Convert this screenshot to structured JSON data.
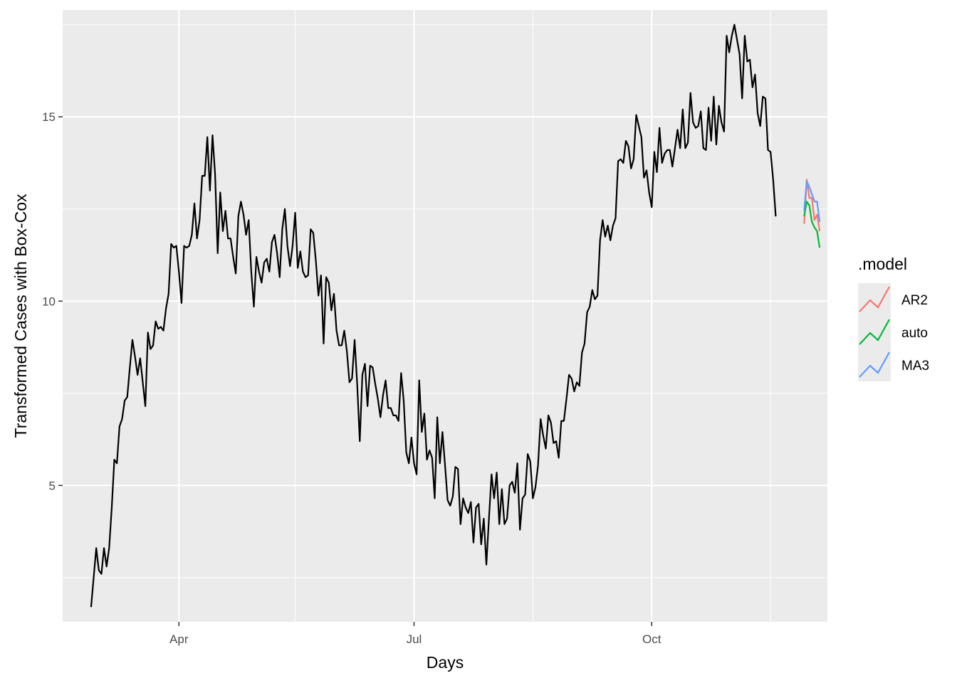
{
  "chart_data": {
    "type": "line",
    "title": "",
    "xlabel": "Days",
    "ylabel": "Transformed Cases with Box-Cox",
    "x_ticks": [
      {
        "label": "Apr",
        "date": "2020-04-01"
      },
      {
        "label": "Jul",
        "date": "2020-07-01"
      },
      {
        "label": "Oct",
        "date": "2020-10-01"
      }
    ],
    "x_minor_dates": [
      "2020-05-16",
      "2020-08-16",
      "2020-11-16"
    ],
    "xlim": [
      "2020-02-16",
      "2020-12-08"
    ],
    "y_ticks": [
      5,
      10,
      15
    ],
    "ylim": [
      1.3,
      17.9
    ],
    "grid": true,
    "legend_title": ".model",
    "legend_position": "right",
    "history": {
      "start_date": "2020-02-27",
      "values": [
        1.7,
        2.5,
        3.3,
        2.7,
        2.6,
        3.3,
        2.8,
        3.3,
        4.4,
        5.7,
        5.6,
        6.6,
        6.8,
        7.3,
        7.4,
        8.2,
        8.95,
        8.5,
        8.0,
        8.45,
        7.8,
        7.15,
        9.15,
        8.7,
        8.8,
        9.45,
        9.25,
        9.3,
        9.2,
        9.8,
        10.2,
        11.55,
        11.45,
        11.5,
        10.8,
        9.95,
        11.5,
        11.45,
        11.5,
        11.8,
        12.65,
        11.7,
        12.2,
        13.4,
        13.4,
        14.45,
        13.0,
        14.5,
        13.45,
        11.3,
        12.95,
        11.9,
        12.45,
        11.7,
        11.7,
        11.2,
        10.75,
        12.3,
        12.7,
        12.35,
        11.8,
        12.2,
        10.8,
        9.85,
        11.2,
        10.8,
        10.5,
        11.05,
        11.15,
        10.8,
        11.6,
        11.8,
        11.3,
        10.65,
        11.95,
        12.5,
        11.5,
        10.95,
        11.5,
        12.4,
        10.9,
        11.35,
        10.8,
        10.65,
        10.7,
        11.95,
        11.85,
        11.1,
        10.15,
        10.7,
        8.85,
        10.65,
        10.5,
        9.75,
        10.2,
        9.2,
        8.8,
        8.8,
        9.2,
        8.65,
        7.8,
        7.9,
        8.95,
        7.75,
        6.2,
        8.0,
        8.3,
        7.15,
        8.25,
        8.2,
        7.75,
        7.35,
        6.85,
        7.45,
        7.85,
        7.1,
        7.1,
        6.9,
        6.9,
        6.75,
        8.05,
        7.3,
        5.9,
        5.6,
        6.3,
        5.6,
        5.3,
        7.85,
        6.45,
        6.95,
        5.7,
        5.95,
        5.75,
        4.65,
        6.85,
        5.6,
        6.45,
        5.55,
        4.6,
        4.45,
        4.7,
        5.5,
        5.45,
        3.95,
        4.65,
        4.4,
        4.25,
        4.55,
        3.45,
        4.4,
        4.5,
        3.4,
        4.1,
        2.85,
        4.1,
        5.3,
        4.65,
        5.35,
        3.95,
        4.9,
        3.95,
        4.1,
        5.0,
        5.1,
        4.8,
        5.6,
        3.8,
        4.65,
        4.75,
        5.85,
        5.65,
        4.65,
        4.95,
        5.55,
        6.8,
        6.35,
        6.0,
        6.9,
        6.7,
        6.15,
        6.2,
        5.75,
        6.75,
        6.75,
        7.35,
        8.0,
        7.9,
        7.55,
        7.8,
        7.7,
        8.6,
        8.85,
        9.7,
        9.85,
        10.3,
        10.05,
        10.15,
        11.65,
        12.2,
        11.75,
        12.05,
        11.65,
        12.05,
        12.25,
        13.8,
        13.85,
        13.75,
        14.35,
        14.2,
        13.6,
        13.85,
        15.05,
        14.75,
        14.45,
        13.35,
        13.55,
        12.95,
        12.55,
        14.05,
        13.5,
        14.7,
        13.75,
        14.0,
        14.1,
        14.1,
        13.65,
        14.15,
        14.65,
        14.15,
        15.2,
        14.15,
        14.3,
        15.65,
        14.85,
        14.7,
        14.75,
        15.15,
        14.15,
        14.1,
        15.25,
        14.35,
        15.55,
        14.25,
        15.3,
        14.85,
        14.6,
        17.2,
        16.75,
        17.2,
        17.5,
        17.1,
        16.7,
        15.5,
        17.2,
        16.5,
        16.55,
        15.8,
        16.15,
        15.1,
        14.75,
        15.55,
        15.5,
        14.1,
        14.05,
        13.3,
        12.3
      ]
    },
    "series": [
      {
        "name": "AR2",
        "color": "#F8766D",
        "start_date": "2020-11-29",
        "values": [
          12.1,
          13.3,
          12.8,
          12.8,
          12.2,
          12.35,
          11.9
        ]
      },
      {
        "name": "auto",
        "color": "#00BA38",
        "start_date": "2020-11-29",
        "values": [
          12.3,
          12.7,
          12.6,
          12.15,
          12.0,
          11.9,
          11.45
        ]
      },
      {
        "name": "MA3",
        "color": "#619CFF",
        "start_date": "2020-11-29",
        "values": [
          12.45,
          13.25,
          13.1,
          12.9,
          12.7,
          12.7,
          12.15
        ]
      }
    ]
  }
}
